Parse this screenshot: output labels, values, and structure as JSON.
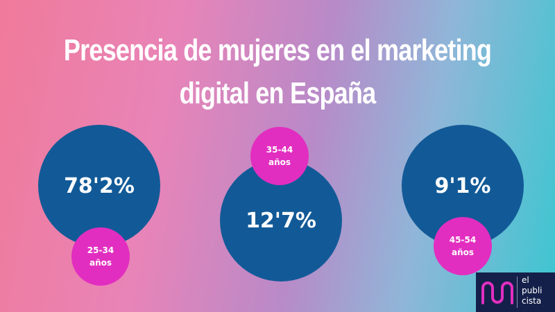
{
  "header": {
    "title": [
      "Presencia de mujeres en el marketing",
      "digital en España"
    ]
  },
  "items": [
    {
      "value": "78'2%",
      "age": [
        "25-34",
        "años"
      ]
    },
    {
      "value": "12'7%",
      "age": [
        "35-44",
        "años"
      ]
    },
    {
      "value": "9'1%",
      "age": [
        "45-54",
        "años"
      ]
    }
  ],
  "logo": {
    "lines": [
      "el",
      "publi",
      "cista"
    ]
  }
}
